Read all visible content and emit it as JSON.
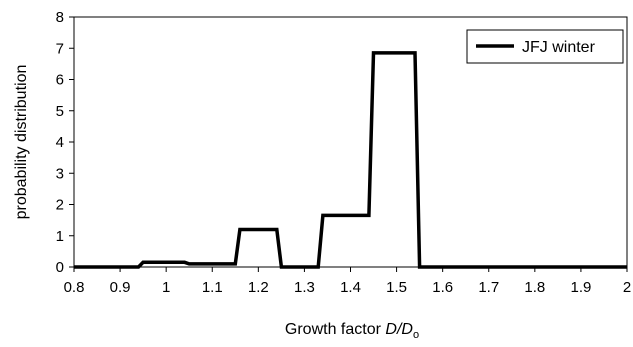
{
  "chart_data": {
    "type": "line",
    "title": "",
    "xlabel": {
      "prefix": "Growth factor ",
      "italic": "D/D",
      "subscript": "o"
    },
    "ylabel": "probability distribution",
    "xlim": [
      0.8,
      2.0
    ],
    "ylim": [
      0,
      8
    ],
    "xticks": [
      "0.8",
      "0.9",
      "1",
      "1.1",
      "1.2",
      "1.3",
      "1.4",
      "1.5",
      "1.6",
      "1.7",
      "1.8",
      "1.9",
      "2"
    ],
    "yticks": [
      "0",
      "1",
      "2",
      "3",
      "4",
      "5",
      "6",
      "7",
      "8"
    ],
    "grid": false,
    "legend_position": "top-right",
    "series": [
      {
        "name": "JFJ winter",
        "color": "#000000",
        "x": [
          0.8,
          0.94,
          0.95,
          1.04,
          1.05,
          1.15,
          1.16,
          1.24,
          1.25,
          1.33,
          1.34,
          1.44,
          1.45,
          1.54,
          1.55,
          2.0
        ],
        "y": [
          0,
          0,
          0.15,
          0.15,
          0.1,
          0.1,
          1.2,
          1.2,
          0,
          0,
          1.65,
          1.65,
          6.85,
          6.85,
          0,
          0
        ]
      }
    ]
  }
}
